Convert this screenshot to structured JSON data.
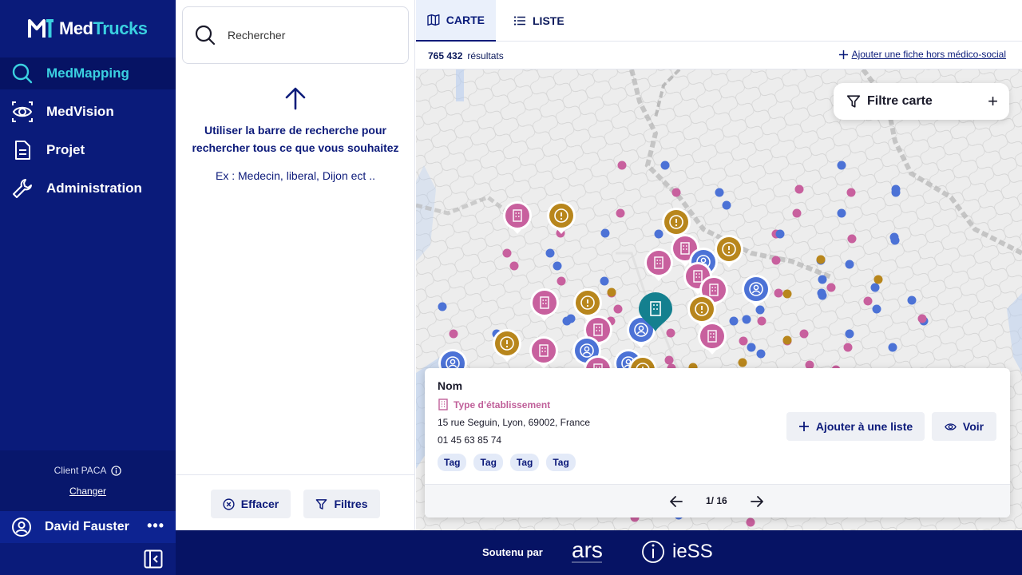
{
  "app": {
    "logo_part1": "Med",
    "logo_part2": "Trucks"
  },
  "sidebar": {
    "items": [
      {
        "label": "MedMapping",
        "icon": "search-icon",
        "active": true
      },
      {
        "label": "MedVision",
        "icon": "eye-icon",
        "active": false
      },
      {
        "label": "Projet",
        "icon": "document-icon",
        "active": false
      },
      {
        "label": "Administration",
        "icon": "wrench-icon",
        "active": false
      }
    ],
    "client_label": "Client PACA",
    "client_change": "Changer",
    "user_name": "David Fauster",
    "user_more": "•••"
  },
  "search": {
    "placeholder": "Rechercher",
    "hint": "Utiliser la barre de recherche pour rechercher tous ce que vous souhaitez",
    "example": "Ex : Medecin, liberal, Dijon ect ..",
    "clear_label": "Effacer",
    "filters_label": "Filtres"
  },
  "tabs": [
    {
      "label": "CARTE",
      "icon": "map-icon",
      "active": true
    },
    {
      "label": "LISTE",
      "icon": "list-icon",
      "active": false
    }
  ],
  "results": {
    "count": "765 432",
    "label": "résultats",
    "add_link": "Ajouter une fiche hors médico-social"
  },
  "map": {
    "filter_label": "Filtre carte",
    "colors": {
      "pink": "#c8609e",
      "blue": "#4c72d6",
      "gold": "#b8861c",
      "teal": "#14808f"
    }
  },
  "card": {
    "name": "Nom",
    "type": "Type d’établissement",
    "address": "15 rue Seguin, Lyon, 69002, France",
    "phone": "01 45 63 85 74",
    "tags": [
      "Tag",
      "Tag",
      "Tag",
      "Tag"
    ],
    "add_list_label": "Ajouter à une liste",
    "view_label": "Voir",
    "pager": "1/ 16"
  },
  "footer": {
    "supported_by": "Soutenu par",
    "logo1": "ars",
    "logo2": "ieSS"
  }
}
